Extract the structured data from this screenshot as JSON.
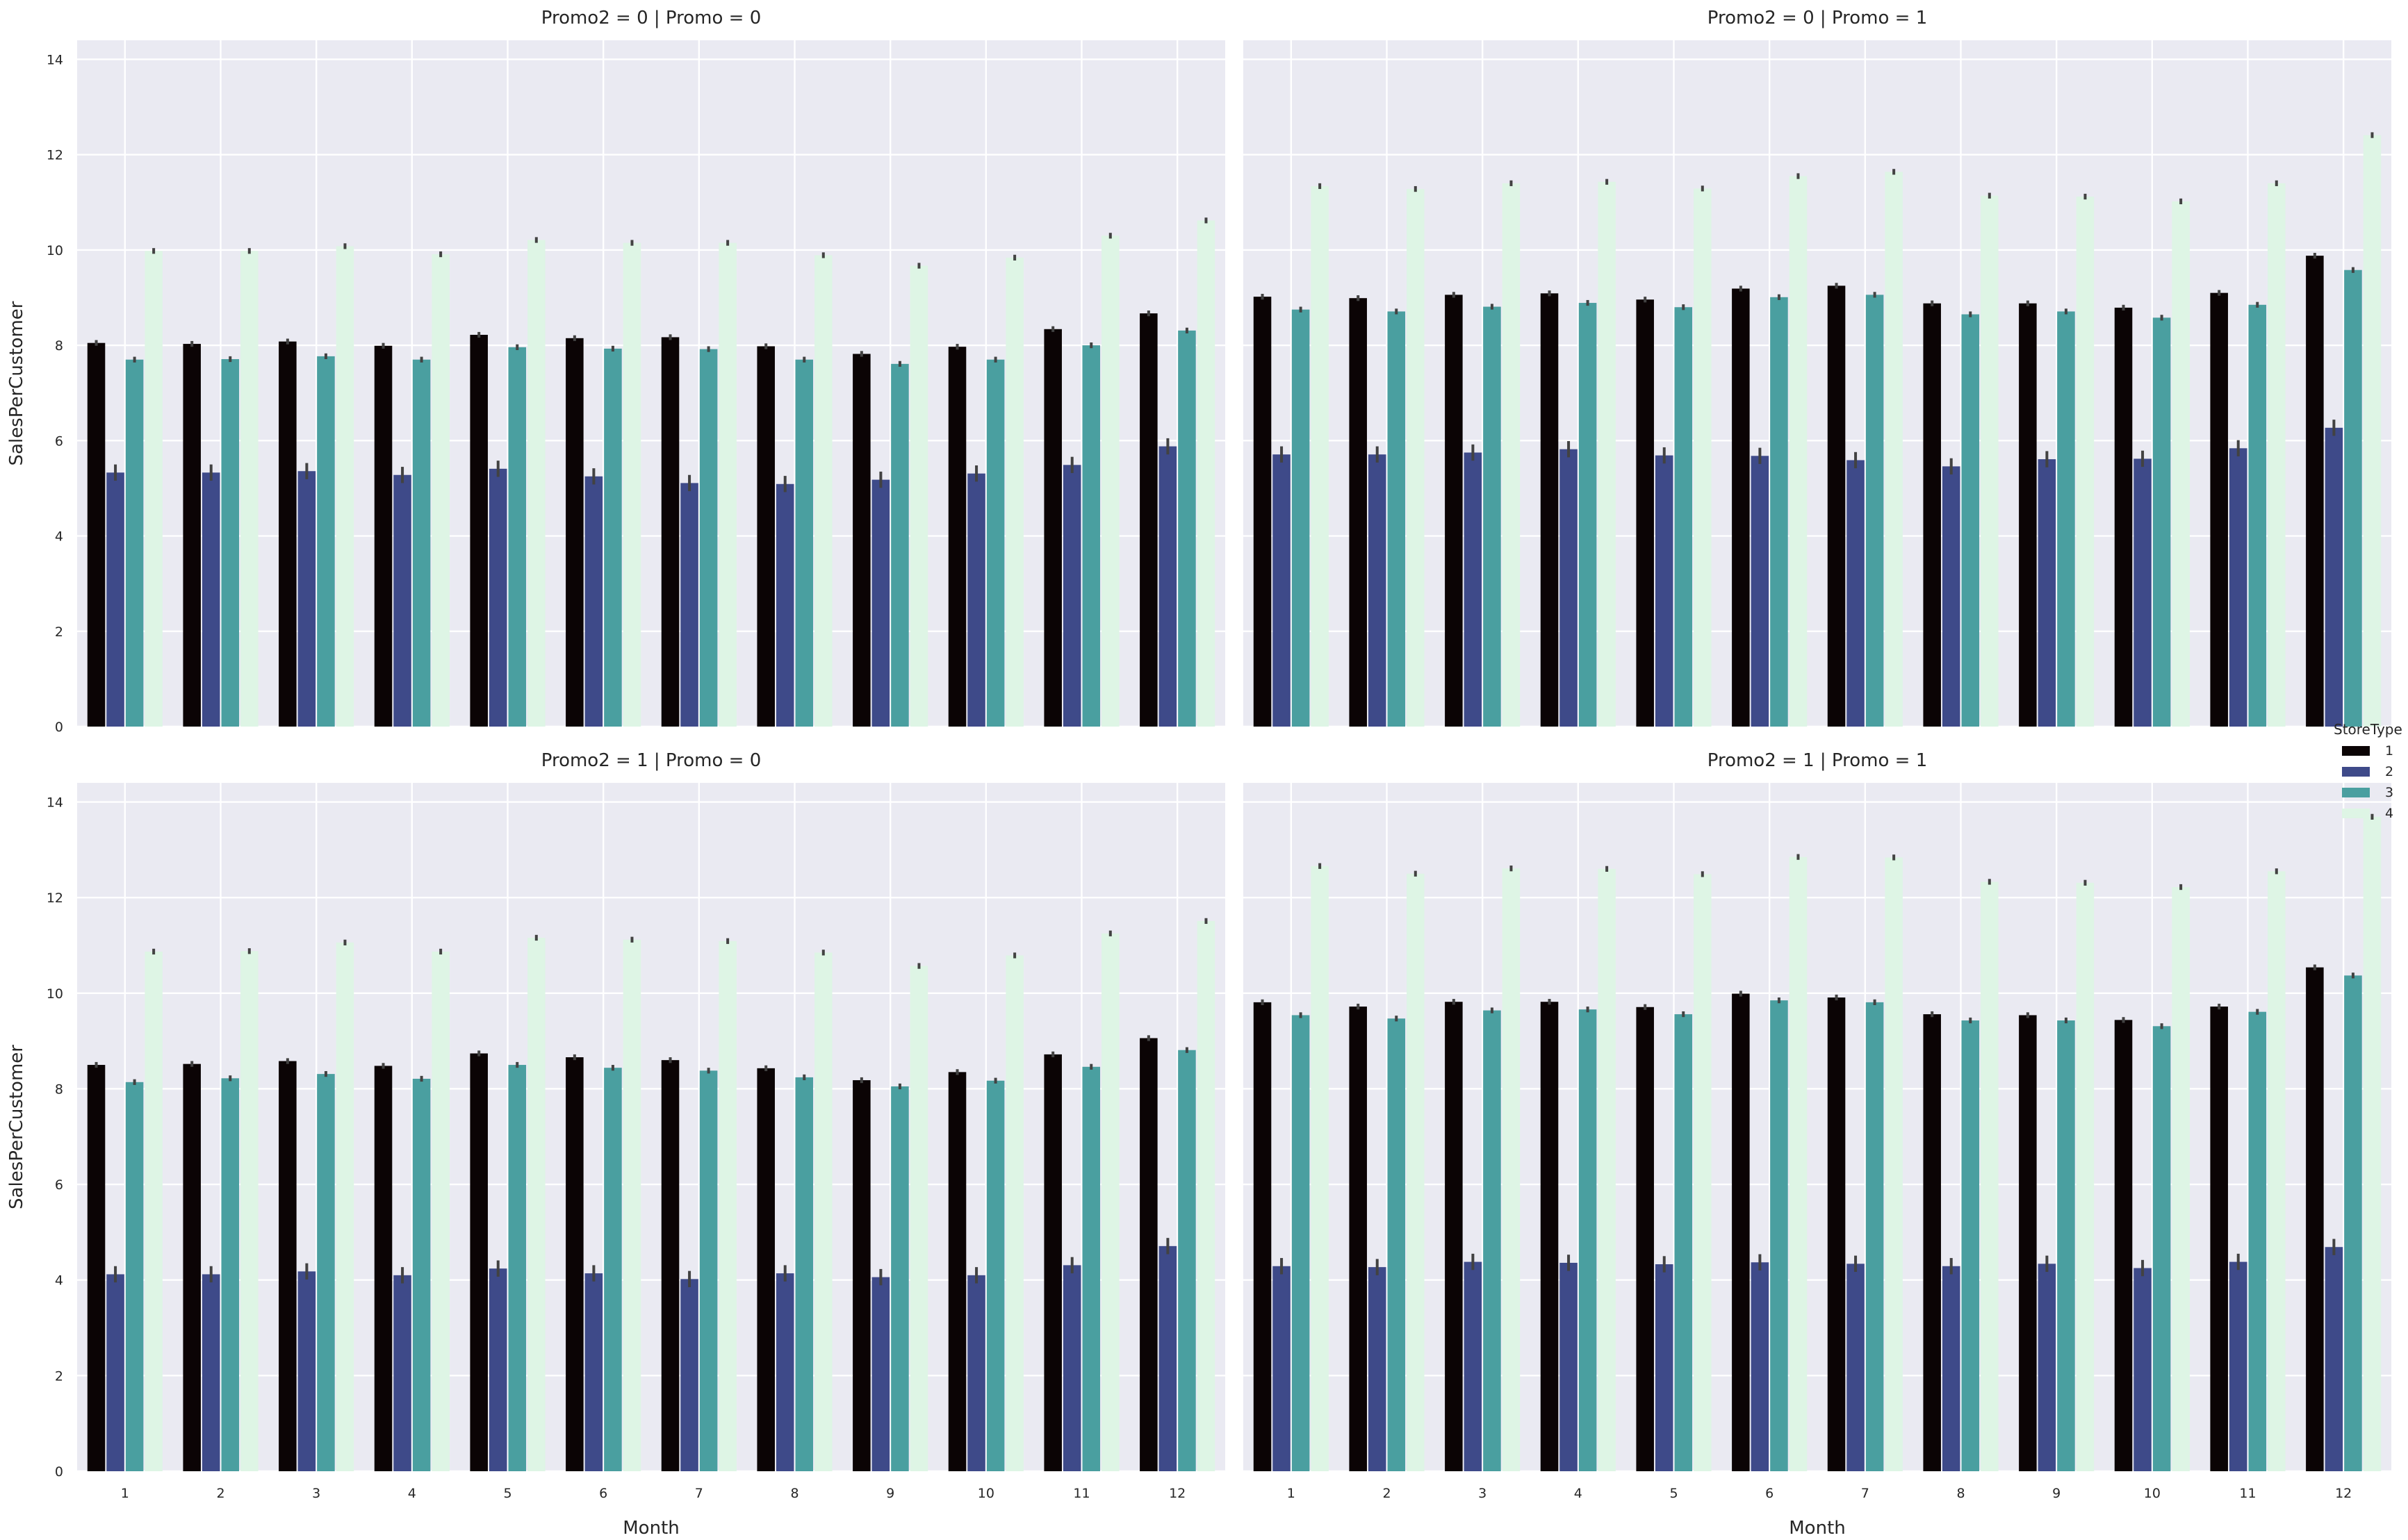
{
  "chart_data": {
    "type": "bar",
    "xlabel": "Month",
    "ylabel": "SalesPerCustomer",
    "ylim": [
      0,
      14.4
    ],
    "yticks": [
      "0",
      "2",
      "4",
      "6",
      "8",
      "10",
      "12",
      "14"
    ],
    "categories": [
      "1",
      "2",
      "3",
      "4",
      "5",
      "6",
      "7",
      "8",
      "9",
      "10",
      "11",
      "12"
    ],
    "grid": true,
    "legend": {
      "title": "StoreType",
      "placement": "right",
      "entries": [
        "1",
        "2",
        "3",
        "4"
      ]
    },
    "colors": [
      "#0b0405",
      "#3e4a89",
      "#4a9fa0",
      "#def5e5"
    ],
    "panels": [
      {
        "title": "Promo2 = 0 | Promo = 0",
        "series": [
          {
            "name": "1",
            "values": [
              8.05,
              8.03,
              8.08,
              7.99,
              8.22,
              8.15,
              8.17,
              7.98,
              7.82,
              7.97,
              8.34,
              8.67
            ]
          },
          {
            "name": "2",
            "values": [
              5.33,
              5.33,
              5.36,
              5.28,
              5.41,
              5.25,
              5.11,
              5.09,
              5.18,
              5.31,
              5.49,
              5.88
            ]
          },
          {
            "name": "3",
            "values": [
              7.7,
              7.71,
              7.77,
              7.7,
              7.96,
              7.93,
              7.92,
              7.7,
              7.61,
              7.7,
              8.0,
              8.31
            ]
          },
          {
            "name": "4",
            "values": [
              9.98,
              9.98,
              10.08,
              9.91,
              10.21,
              10.15,
              10.15,
              9.89,
              9.67,
              9.84,
              10.3,
              10.62
            ]
          }
        ]
      },
      {
        "title": "Promo2 = 0 | Promo = 1",
        "series": [
          {
            "name": "1",
            "values": [
              9.02,
              8.99,
              9.06,
              9.09,
              8.96,
              9.19,
              9.25,
              8.88,
              8.88,
              8.79,
              9.1,
              9.88
            ]
          },
          {
            "name": "2",
            "values": [
              5.71,
              5.71,
              5.75,
              5.82,
              5.69,
              5.68,
              5.59,
              5.46,
              5.61,
              5.62,
              5.84,
              6.27
            ]
          },
          {
            "name": "3",
            "values": [
              8.75,
              8.71,
              8.81,
              8.89,
              8.8,
              9.01,
              9.06,
              8.65,
              8.71,
              8.58,
              8.85,
              9.58
            ]
          },
          {
            "name": "4",
            "values": [
              11.34,
              11.28,
              11.4,
              11.43,
              11.29,
              11.55,
              11.64,
              11.14,
              11.12,
              11.02,
              11.4,
              12.41
            ]
          }
        ]
      },
      {
        "title": "Promo2 = 1 | Promo = 0",
        "series": [
          {
            "name": "1",
            "values": [
              8.5,
              8.52,
              8.58,
              8.48,
              8.74,
              8.66,
              8.6,
              8.43,
              8.18,
              8.35,
              8.72,
              9.06
            ]
          },
          {
            "name": "2",
            "values": [
              4.12,
              4.12,
              4.18,
              4.1,
              4.24,
              4.14,
              4.02,
              4.14,
              4.06,
              4.1,
              4.31,
              4.71
            ]
          },
          {
            "name": "3",
            "values": [
              8.14,
              8.22,
              8.31,
              8.21,
              8.5,
              8.44,
              8.38,
              8.24,
              8.05,
              8.17,
              8.46,
              8.81
            ]
          },
          {
            "name": "4",
            "values": [
              10.87,
              10.88,
              11.06,
              10.87,
              11.16,
              11.12,
              11.09,
              10.85,
              10.57,
              10.79,
              11.25,
              11.51
            ]
          }
        ]
      },
      {
        "title": "Promo2 = 1 | Promo = 1",
        "series": [
          {
            "name": "1",
            "values": [
              9.81,
              9.72,
              9.82,
              9.82,
              9.71,
              9.99,
              9.91,
              9.56,
              9.54,
              9.44,
              9.72,
              10.54
            ]
          },
          {
            "name": "2",
            "values": [
              4.29,
              4.27,
              4.38,
              4.36,
              4.33,
              4.37,
              4.34,
              4.29,
              4.34,
              4.25,
              4.38,
              4.69
            ]
          },
          {
            "name": "3",
            "values": [
              9.54,
              9.47,
              9.64,
              9.66,
              9.56,
              9.85,
              9.81,
              9.43,
              9.43,
              9.31,
              9.61,
              10.37
            ]
          },
          {
            "name": "4",
            "values": [
              12.66,
              12.5,
              12.61,
              12.6,
              12.49,
              12.85,
              12.84,
              12.33,
              12.31,
              12.22,
              12.55,
              13.69
            ]
          }
        ]
      }
    ]
  }
}
